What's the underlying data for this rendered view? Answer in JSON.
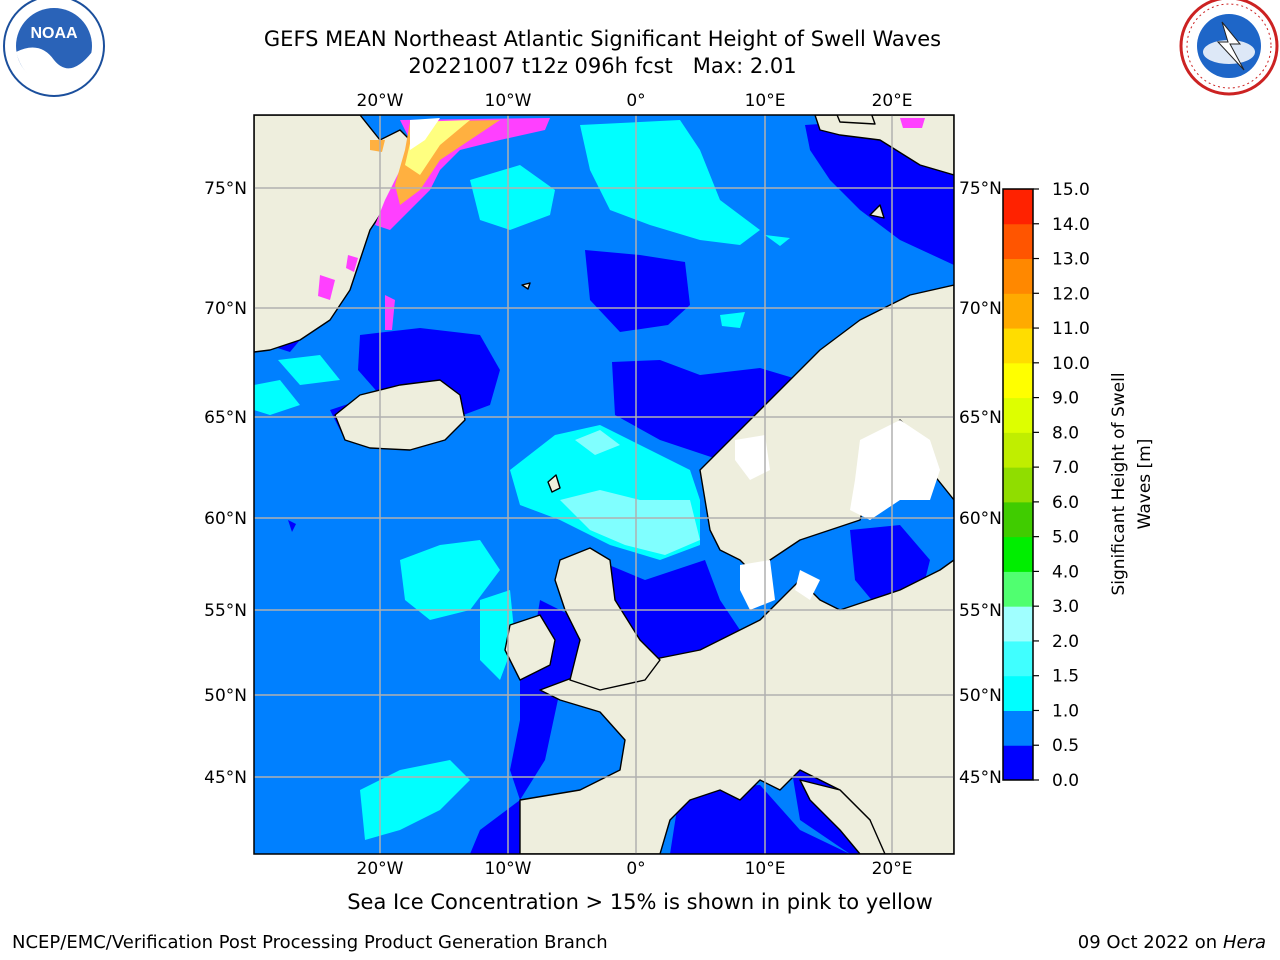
{
  "header": {
    "title_line1": "GEFS MEAN Northeast Atlantic Significant Height of Swell Waves",
    "title_line2": "20221007 t12z 096h fcst   Max: 2.01"
  },
  "logos": {
    "left": "NOAA",
    "right": "NATIONAL WEATHER SERVICE"
  },
  "map": {
    "lon_labels_top": [
      "20°W",
      "10°W",
      "0°",
      "10°E",
      "20°E"
    ],
    "lon_labels_bottom": [
      "20°W",
      "10°W",
      "0°",
      "10°E",
      "20°E"
    ],
    "lat_labels_left": [
      "75°N",
      "70°N",
      "65°N",
      "60°N",
      "55°N",
      "50°N",
      "45°N"
    ],
    "lat_labels_right": [
      "75°N",
      "70°N",
      "65°N",
      "60°N",
      "55°N",
      "50°N",
      "45°N"
    ],
    "colors": {
      "ocean_base": "#0080ff",
      "land": "#eeeedd",
      "low_swell": "#0000ff",
      "mid_swell": "#00ffff",
      "high_swell": "#80ffff",
      "ice_pink": "#ff40ff",
      "ice_orange": "#ffb040",
      "ice_yellow": "#ffff80",
      "grid": "#b0b0b0"
    }
  },
  "colorbar": {
    "label": "Significant Height of Swell Waves [m]",
    "label_line1": "Significant Height of Swell",
    "label_line2": "Waves [m]",
    "ticks": [
      "0.0",
      "0.5",
      "1.0",
      "1.5",
      "2.0",
      "3.0",
      "4.0",
      "5.0",
      "6.0",
      "7.0",
      "8.0",
      "9.0",
      "10.0",
      "11.0",
      "12.0",
      "13.0",
      "14.0",
      "15.0"
    ],
    "colors": [
      "#0000ff",
      "#0080ff",
      "#00ffff",
      "#40ffff",
      "#a0ffff",
      "#50ff70",
      "#00ee00",
      "#40cc00",
      "#90dd00",
      "#c0ee00",
      "#ddff00",
      "#ffff00",
      "#ffdd00",
      "#ffaa00",
      "#ff8800",
      "#ff5500",
      "#ff2200"
    ]
  },
  "caption": "Sea Ice Concentration > 15% is shown in pink to yellow",
  "footer": {
    "left": "NCEP/EMC/Verification Post Processing Product Generation Branch",
    "right_date": "09 Oct 2022 on ",
    "right_host": "Hera"
  }
}
